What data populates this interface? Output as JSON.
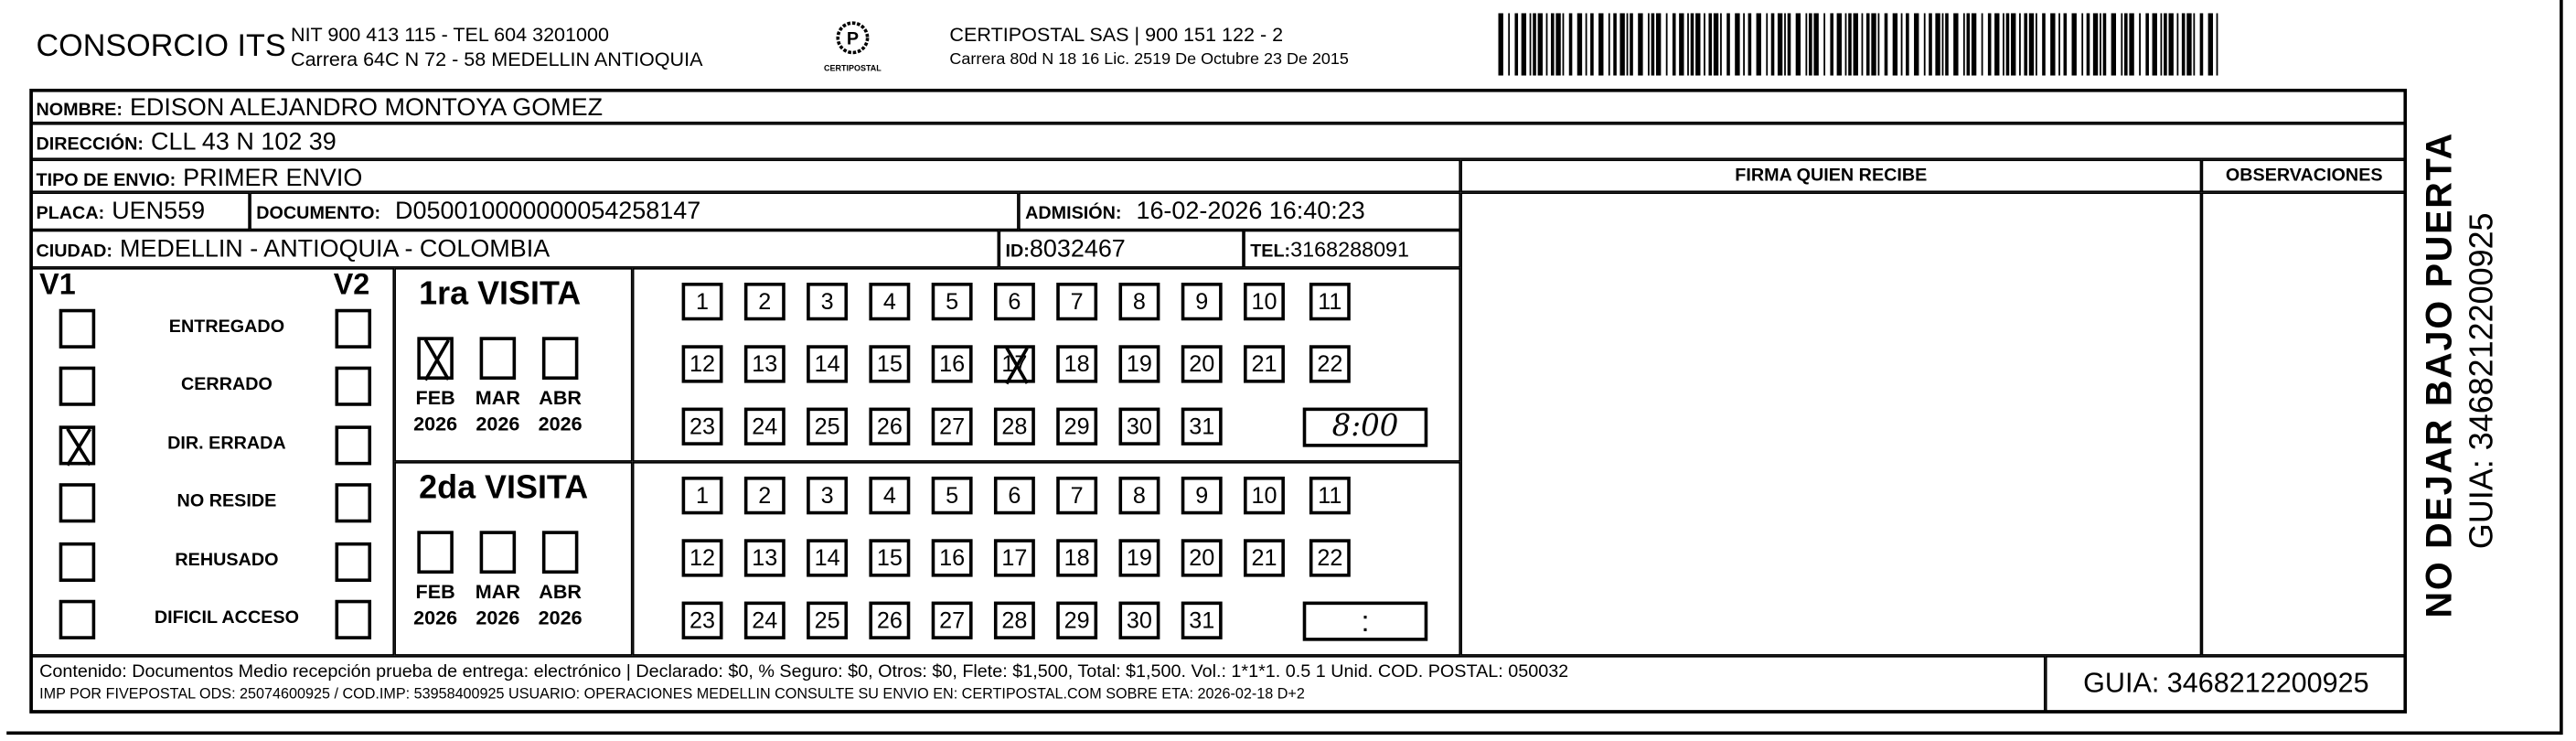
{
  "header": {
    "company": "CONSORCIO ITS",
    "company_line1": "NIT 900 413 115 - TEL 604 3201000",
    "company_line2": "Carrera 64C N 72 - 58 MEDELLIN ANTIOQUIA",
    "logo_text": "CERTIPOSTAL",
    "carrier_line1": "CERTIPOSTAL SAS | 900 151 122 - 2",
    "carrier_line2": "Carrera 80d N 18 16  Lic. 2519 De Octubre 23 De 2015",
    "barcode_icon": "barcode"
  },
  "recipient": {
    "nombre_label": "NOMBRE:",
    "nombre": "EDISON ALEJANDRO MONTOYA GOMEZ",
    "direccion_label": "DIRECCIÓN:",
    "direccion": "CLL 43 N 102 39",
    "tipo_label": "TIPO DE ENVIO:",
    "tipo": "PRIMER ENVIO",
    "placa_label": "PLACA:",
    "placa": "UEN559",
    "documento_label": "DOCUMENTO:",
    "documento": "D050010000000054258147",
    "admision_label": "ADMISIÓN:",
    "admision": "16-02-2026 16:40:23",
    "ciudad_label": "CIUDAD:",
    "ciudad": "MEDELLIN - ANTIOQUIA - COLOMBIA",
    "id_label": "ID:",
    "id": "8032467",
    "tel_label": "TEL:",
    "tel": "3168288091"
  },
  "columns": {
    "firma": "FIRMA QUIEN RECIBE",
    "observaciones": "OBSERVACIONES"
  },
  "status": {
    "v1_label": "V1",
    "v2_label": "V2",
    "items": [
      {
        "label": "ENTREGADO",
        "v1": false,
        "v2": false
      },
      {
        "label": "CERRADO",
        "v1": false,
        "v2": false
      },
      {
        "label": "DIR. ERRADA",
        "v1": true,
        "v2": false
      },
      {
        "label": "NO RESIDE",
        "v1": false,
        "v2": false
      },
      {
        "label": "REHUSADO",
        "v1": false,
        "v2": false
      },
      {
        "label": "DIFICIL ACCESO",
        "v1": false,
        "v2": false
      }
    ]
  },
  "visits": [
    {
      "title": "1ra VISITA",
      "months": [
        {
          "m": "FEB",
          "y": "2026",
          "checked": true
        },
        {
          "m": "MAR",
          "y": "2026",
          "checked": false
        },
        {
          "m": "ABR",
          "y": "2026",
          "checked": false
        }
      ],
      "marked_day": 17,
      "time": "8:00"
    },
    {
      "title": "2da VISITA",
      "months": [
        {
          "m": "FEB",
          "y": "2026",
          "checked": false
        },
        {
          "m": "MAR",
          "y": "2026",
          "checked": false
        },
        {
          "m": "ABR",
          "y": "2026",
          "checked": false
        }
      ],
      "marked_day": null,
      "time": ":"
    }
  ],
  "footer": {
    "line1": "Contenido: Documentos Medio recepción prueba de entrega: electrónico | Declarado: $0, % Seguro: $0, Otros: $0, Flete: $1,500, Total: $1,500. Vol.: 1*1*1. 0.5  1 Unid. COD. POSTAL: 050032",
    "line2": "IMP POR FIVEPOSTAL ODS: 25074600925 / COD.IMP: 53958400925 USUARIO: OPERACIONES MEDELLIN CONSULTE SU ENVIO EN: CERTIPOSTAL.COM SOBRE ETA: 2026-02-18 D+2",
    "guia": "GUIA: 3468212200925"
  },
  "side": {
    "warning": "NO DEJAR BAJO PUERTA",
    "guia": "GUIA: 3468212200925"
  }
}
